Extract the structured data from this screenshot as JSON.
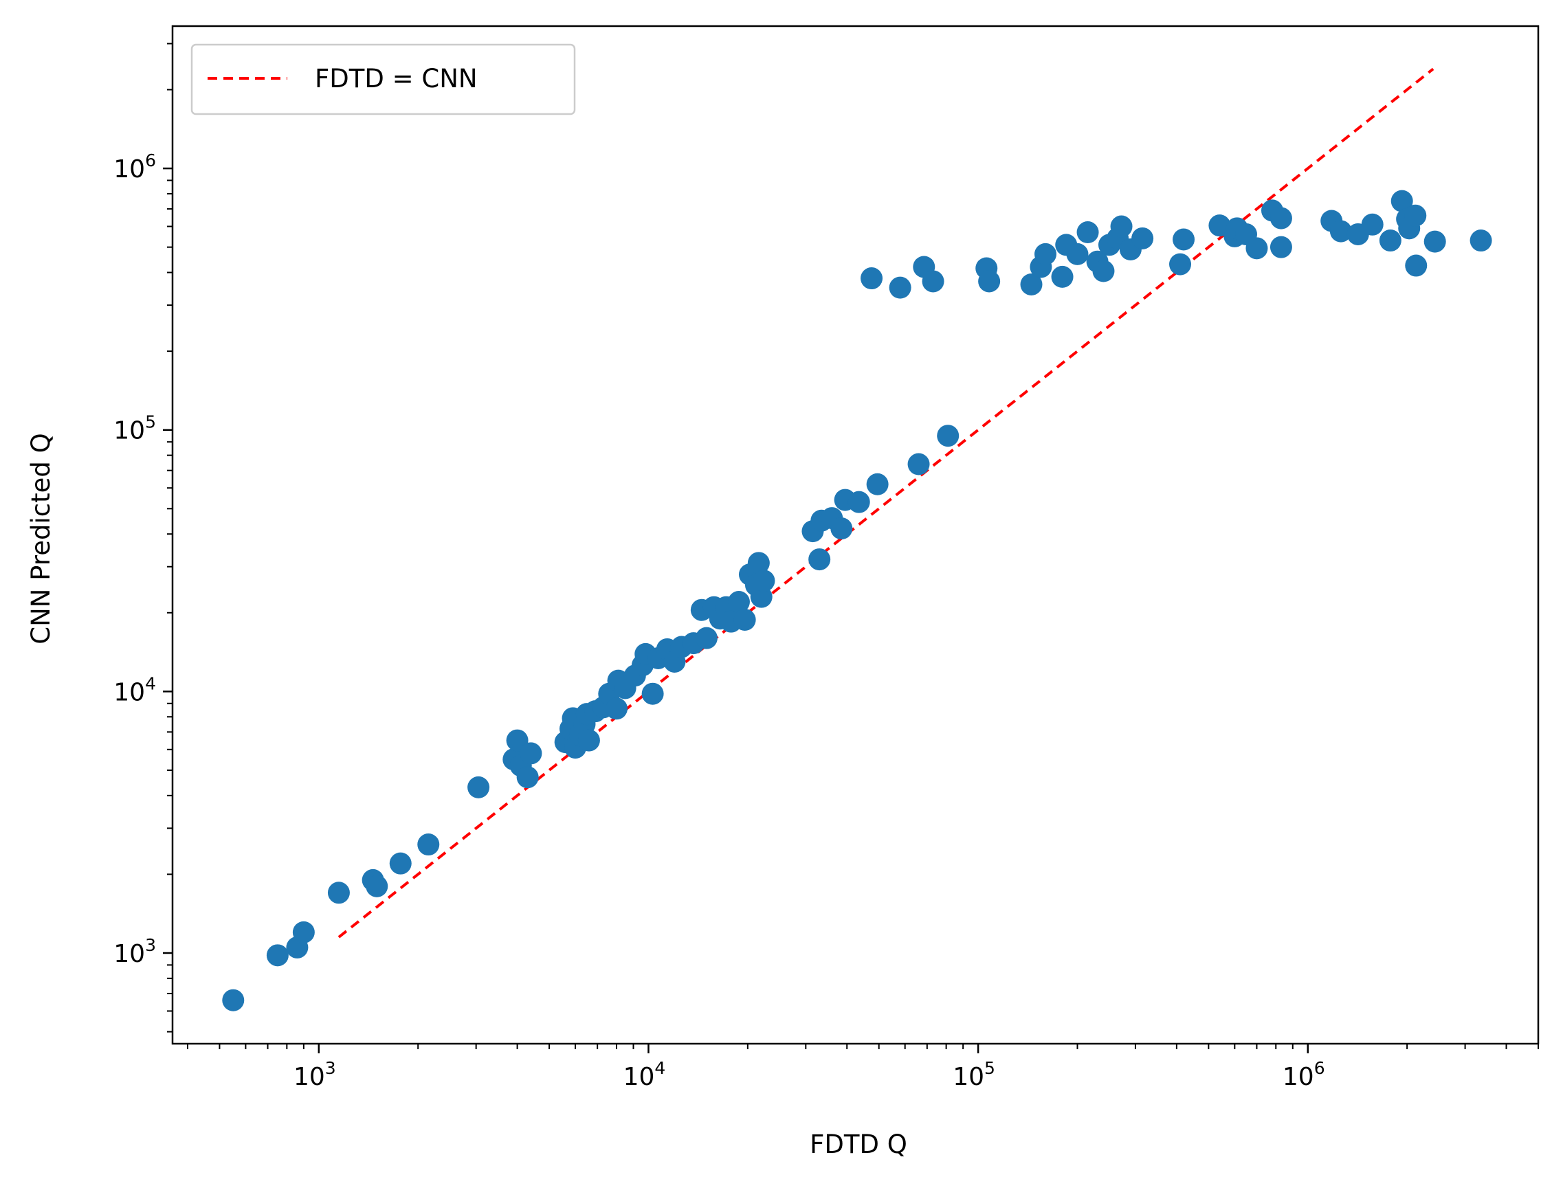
{
  "chart_data": {
    "type": "scatter",
    "xlabel": "FDTD Q",
    "ylabel": "CNN Predicted Q",
    "xscale": "log",
    "yscale": "log",
    "xlim": [
      360,
      5000000
    ],
    "ylim": [
      450,
      3500000
    ],
    "x_major_ticks": [
      {
        "value": 1000,
        "base": "10",
        "exp": "3"
      },
      {
        "value": 10000,
        "base": "10",
        "exp": "4"
      },
      {
        "value": 100000,
        "base": "10",
        "exp": "5"
      },
      {
        "value": 1000000,
        "base": "10",
        "exp": "6"
      }
    ],
    "y_major_ticks": [
      {
        "value": 1000,
        "base": "10",
        "exp": "3"
      },
      {
        "value": 10000,
        "base": "10",
        "exp": "4"
      },
      {
        "value": 100000,
        "base": "10",
        "exp": "5"
      },
      {
        "value": 1000000,
        "base": "10",
        "exp": "6"
      }
    ],
    "grid": false,
    "legend": {
      "position": "top-left",
      "entries": [
        {
          "label": "FDTD = CNN",
          "style": "dashed",
          "color": "#ff0000"
        }
      ]
    },
    "reference_line": {
      "label": "FDTD = CNN",
      "x": [
        1150,
        2400000
      ],
      "y": [
        1150,
        2400000
      ],
      "color": "#ff0000",
      "style": "dashed"
    },
    "series": [
      {
        "color": "#1f77b4",
        "marker": "circle",
        "points": [
          [
            550,
            660
          ],
          [
            750,
            980
          ],
          [
            860,
            1050
          ],
          [
            900,
            1200
          ],
          [
            1150,
            1700
          ],
          [
            1460,
            1900
          ],
          [
            1500,
            1800
          ],
          [
            1770,
            2200
          ],
          [
            2150,
            2600
          ],
          [
            3050,
            4300
          ],
          [
            3900,
            5500
          ],
          [
            4000,
            6500
          ],
          [
            4100,
            5200
          ],
          [
            4300,
            4700
          ],
          [
            4400,
            5800
          ],
          [
            5600,
            6400
          ],
          [
            5800,
            7200
          ],
          [
            5900,
            7900
          ],
          [
            6000,
            6100
          ],
          [
            6200,
            6800
          ],
          [
            6400,
            7500
          ],
          [
            6500,
            8200
          ],
          [
            6600,
            6500
          ],
          [
            6900,
            8400
          ],
          [
            7300,
            8700
          ],
          [
            7600,
            9800
          ],
          [
            8000,
            8600
          ],
          [
            8100,
            11000
          ],
          [
            8500,
            10300
          ],
          [
            9100,
            11500
          ],
          [
            9600,
            12600
          ],
          [
            9800,
            13900
          ],
          [
            10300,
            9800
          ],
          [
            10700,
            13400
          ],
          [
            11400,
            14500
          ],
          [
            12000,
            13000
          ],
          [
            12600,
            14800
          ],
          [
            13700,
            15300
          ],
          [
            14500,
            20500
          ],
          [
            15000,
            16000
          ],
          [
            15800,
            21000
          ],
          [
            16500,
            19000
          ],
          [
            17200,
            21000
          ],
          [
            17800,
            18500
          ],
          [
            18800,
            22000
          ],
          [
            19600,
            18800
          ],
          [
            20300,
            28000
          ],
          [
            21200,
            25500
          ],
          [
            21600,
            31000
          ],
          [
            22000,
            23000
          ],
          [
            22400,
            26500
          ],
          [
            31500,
            41000
          ],
          [
            33000,
            32000
          ],
          [
            33500,
            45000
          ],
          [
            36000,
            46000
          ],
          [
            38500,
            42000
          ],
          [
            39500,
            54000
          ],
          [
            43500,
            53000
          ],
          [
            47500,
            380000
          ],
          [
            49500,
            62000
          ],
          [
            58000,
            350000
          ],
          [
            66000,
            74000
          ],
          [
            68500,
            420000
          ],
          [
            73000,
            370000
          ],
          [
            81000,
            95000
          ],
          [
            106000,
            415000
          ],
          [
            108000,
            370000
          ],
          [
            145000,
            360000
          ],
          [
            155000,
            420000
          ],
          [
            160000,
            470000
          ],
          [
            180000,
            385000
          ],
          [
            185000,
            510000
          ],
          [
            200000,
            470000
          ],
          [
            215000,
            570000
          ],
          [
            230000,
            440000
          ],
          [
            240000,
            405000
          ],
          [
            250000,
            510000
          ],
          [
            265000,
            540000
          ],
          [
            272000,
            600000
          ],
          [
            290000,
            490000
          ],
          [
            315000,
            540000
          ],
          [
            410000,
            430000
          ],
          [
            420000,
            535000
          ],
          [
            540000,
            605000
          ],
          [
            600000,
            550000
          ],
          [
            610000,
            590000
          ],
          [
            650000,
            560000
          ],
          [
            700000,
            495000
          ],
          [
            780000,
            690000
          ],
          [
            830000,
            645000
          ],
          [
            830000,
            500000
          ],
          [
            1180000,
            630000
          ],
          [
            1260000,
            575000
          ],
          [
            1420000,
            560000
          ],
          [
            1570000,
            610000
          ],
          [
            1780000,
            530000
          ],
          [
            1930000,
            750000
          ],
          [
            2000000,
            640000
          ],
          [
            2030000,
            590000
          ],
          [
            2120000,
            660000
          ],
          [
            2130000,
            425000
          ],
          [
            2430000,
            525000
          ],
          [
            3350000,
            530000
          ]
        ]
      }
    ]
  }
}
